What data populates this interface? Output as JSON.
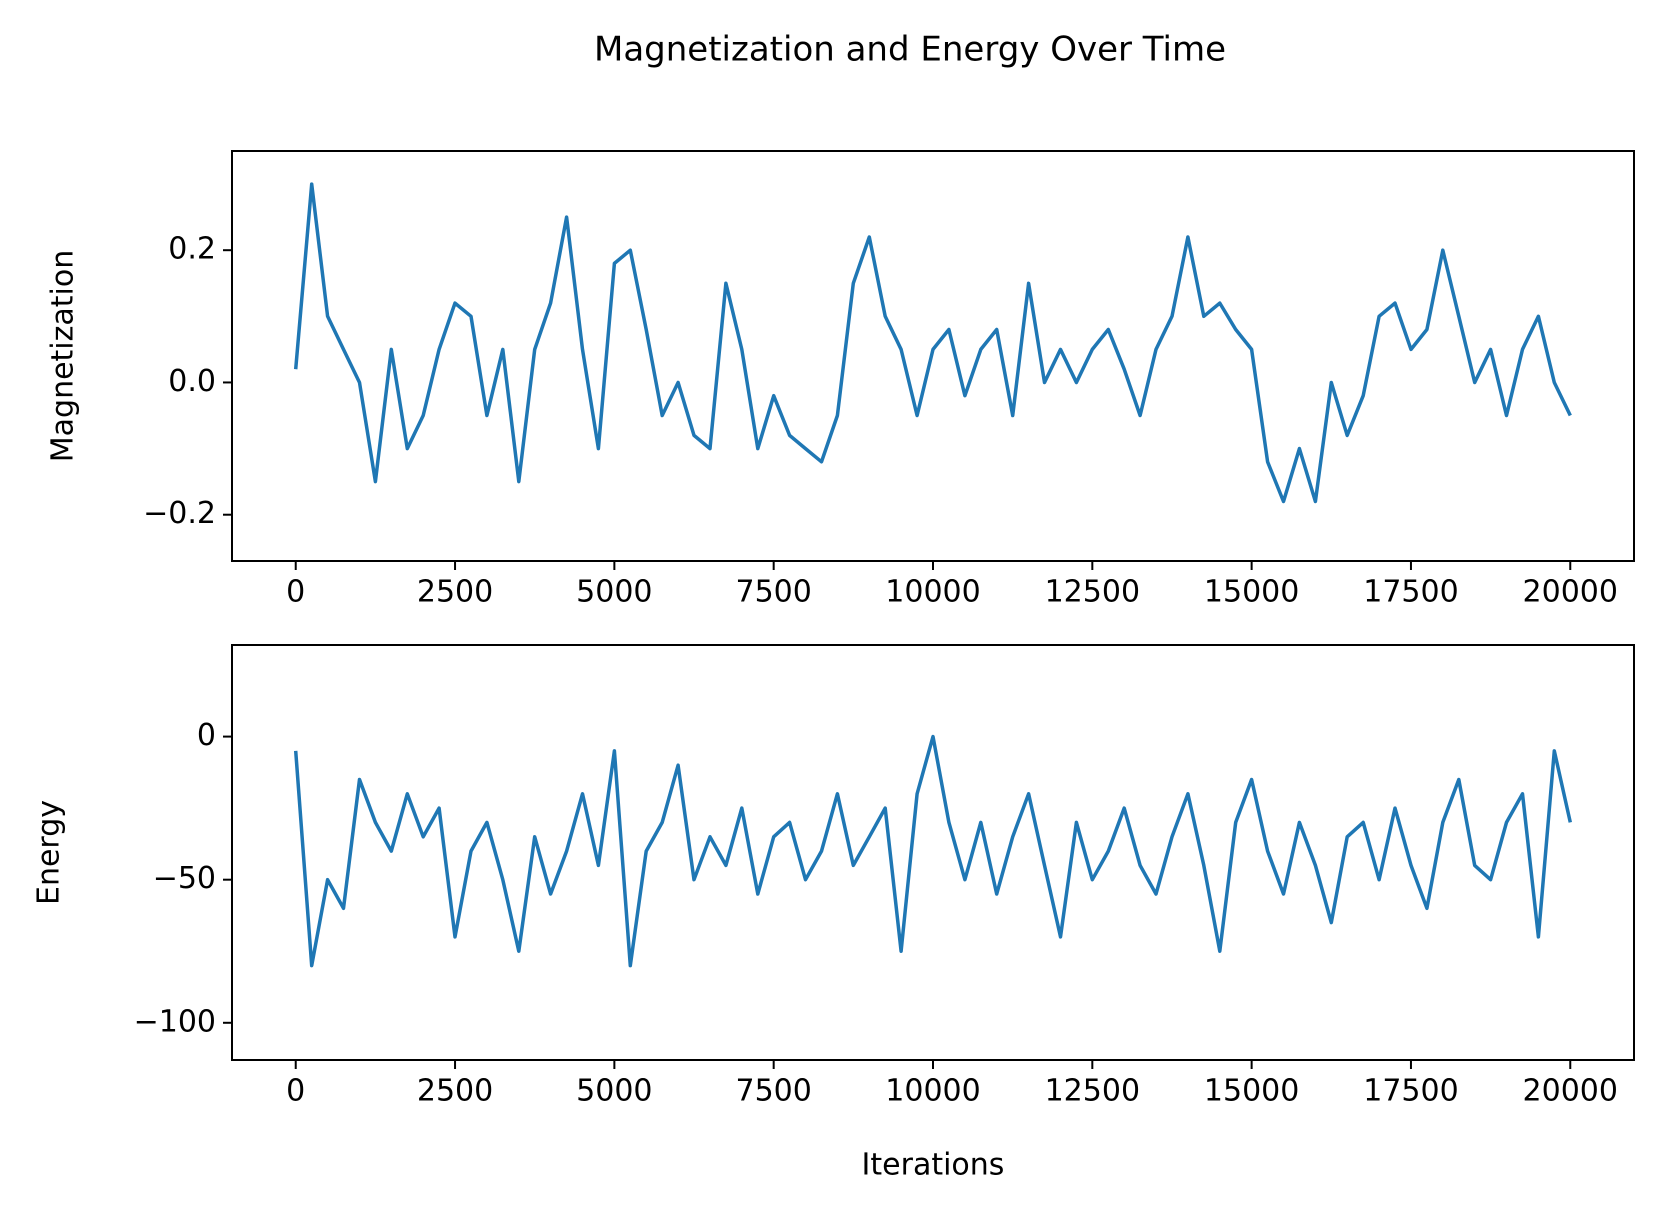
{
  "title": "Magnetization and Energy Over Time",
  "chart_data": [
    {
      "type": "line",
      "ylabel": "Magnetization",
      "color": "#1f77b4",
      "x": [
        0,
        250,
        500,
        750,
        1000,
        1250,
        1500,
        1750,
        2000,
        2250,
        2500,
        2750,
        3000,
        3250,
        3500,
        3750,
        4000,
        4250,
        4500,
        4750,
        5000,
        5250,
        5500,
        5750,
        6000,
        6250,
        6500,
        6750,
        7000,
        7250,
        7500,
        7750,
        8000,
        8250,
        8500,
        8750,
        9000,
        9250,
        9500,
        9750,
        10000,
        10250,
        10500,
        10750,
        11000,
        11250,
        11500,
        11750,
        12000,
        12250,
        12500,
        12750,
        13000,
        13250,
        13500,
        13750,
        14000,
        14250,
        14500,
        14750,
        15000,
        15250,
        15500,
        15750,
        16000,
        16250,
        16500,
        16750,
        17000,
        17250,
        17500,
        17750,
        18000,
        18250,
        18500,
        18750,
        19000,
        19250,
        19500,
        19750,
        20000
      ],
      "values": [
        0.02,
        0.3,
        0.1,
        0.05,
        0.0,
        -0.15,
        0.05,
        -0.1,
        -0.05,
        0.05,
        0.12,
        0.1,
        -0.05,
        0.05,
        -0.15,
        0.05,
        0.12,
        0.25,
        0.05,
        -0.1,
        0.18,
        0.2,
        0.08,
        -0.05,
        0.0,
        -0.08,
        -0.1,
        0.15,
        0.05,
        -0.1,
        -0.02,
        -0.08,
        -0.1,
        -0.12,
        -0.05,
        0.15,
        0.22,
        0.1,
        0.05,
        -0.05,
        0.05,
        0.08,
        -0.02,
        0.05,
        0.08,
        -0.05,
        0.15,
        0.0,
        0.05,
        0.0,
        0.05,
        0.08,
        0.02,
        -0.05,
        0.05,
        0.1,
        0.22,
        0.1,
        0.12,
        0.08,
        0.05,
        -0.12,
        -0.18,
        -0.1,
        -0.18,
        0.0,
        -0.08,
        -0.02,
        0.1,
        0.12,
        0.05,
        0.08,
        0.2,
        0.1,
        0.0,
        0.05,
        -0.05,
        0.05,
        0.1,
        0.0,
        -0.05
      ],
      "xlim": [
        -1000,
        21000
      ],
      "xticks": [
        0,
        2500,
        5000,
        7500,
        10000,
        12500,
        15000,
        17500,
        20000
      ],
      "ylim": [
        -0.27,
        0.35
      ],
      "yticks": [
        {
          "value": -0.2,
          "label": "−0.2"
        },
        {
          "value": 0,
          "label": "0.0"
        },
        0.2
      ]
    },
    {
      "type": "line",
      "ylabel": "Energy",
      "xlabel": "Iterations",
      "color": "#1f77b4",
      "x": [
        0,
        250,
        500,
        750,
        1000,
        1250,
        1500,
        1750,
        2000,
        2250,
        2500,
        2750,
        3000,
        3250,
        3500,
        3750,
        4000,
        4250,
        4500,
        4750,
        5000,
        5250,
        5500,
        5750,
        6000,
        6250,
        6500,
        6750,
        7000,
        7250,
        7500,
        7750,
        8000,
        8250,
        8500,
        8750,
        9000,
        9250,
        9500,
        9750,
        10000,
        10250,
        10500,
        10750,
        11000,
        11250,
        11500,
        11750,
        12000,
        12250,
        12500,
        12750,
        13000,
        13250,
        13500,
        13750,
        14000,
        14250,
        14500,
        14750,
        15000,
        15250,
        15500,
        15750,
        16000,
        16250,
        16500,
        16750,
        17000,
        17250,
        17500,
        17750,
        18000,
        18250,
        18500,
        18750,
        19000,
        19250,
        19500,
        19750,
        20000
      ],
      "values": [
        -5,
        -80,
        -50,
        -60,
        -15,
        -30,
        -40,
        -20,
        -35,
        -25,
        -70,
        -40,
        -30,
        -50,
        -75,
        -35,
        -55,
        -40,
        -20,
        -45,
        -5,
        -80,
        -40,
        -30,
        -10,
        -50,
        -35,
        -45,
        -25,
        -55,
        -35,
        -30,
        -50,
        -40,
        -20,
        -45,
        -35,
        -25,
        -75,
        -20,
        0,
        -30,
        -50,
        -30,
        -55,
        -35,
        -20,
        -45,
        -70,
        -30,
        -50,
        -40,
        -25,
        -45,
        -55,
        -35,
        -20,
        -45,
        -75,
        -30,
        -15,
        -40,
        -55,
        -30,
        -45,
        -65,
        -35,
        -30,
        -50,
        -25,
        -45,
        -60,
        -30,
        -15,
        -45,
        -50,
        -30,
        -20,
        -70,
        -5,
        -30
      ],
      "xlim": [
        -1000,
        21000
      ],
      "xticks": [
        0,
        2500,
        5000,
        7500,
        10000,
        12500,
        15000,
        17500,
        20000
      ],
      "ylim": [
        -113,
        32
      ],
      "yticks": [
        {
          "value": -100,
          "label": "−100"
        },
        {
          "value": -50,
          "label": "−50"
        },
        0
      ]
    }
  ]
}
